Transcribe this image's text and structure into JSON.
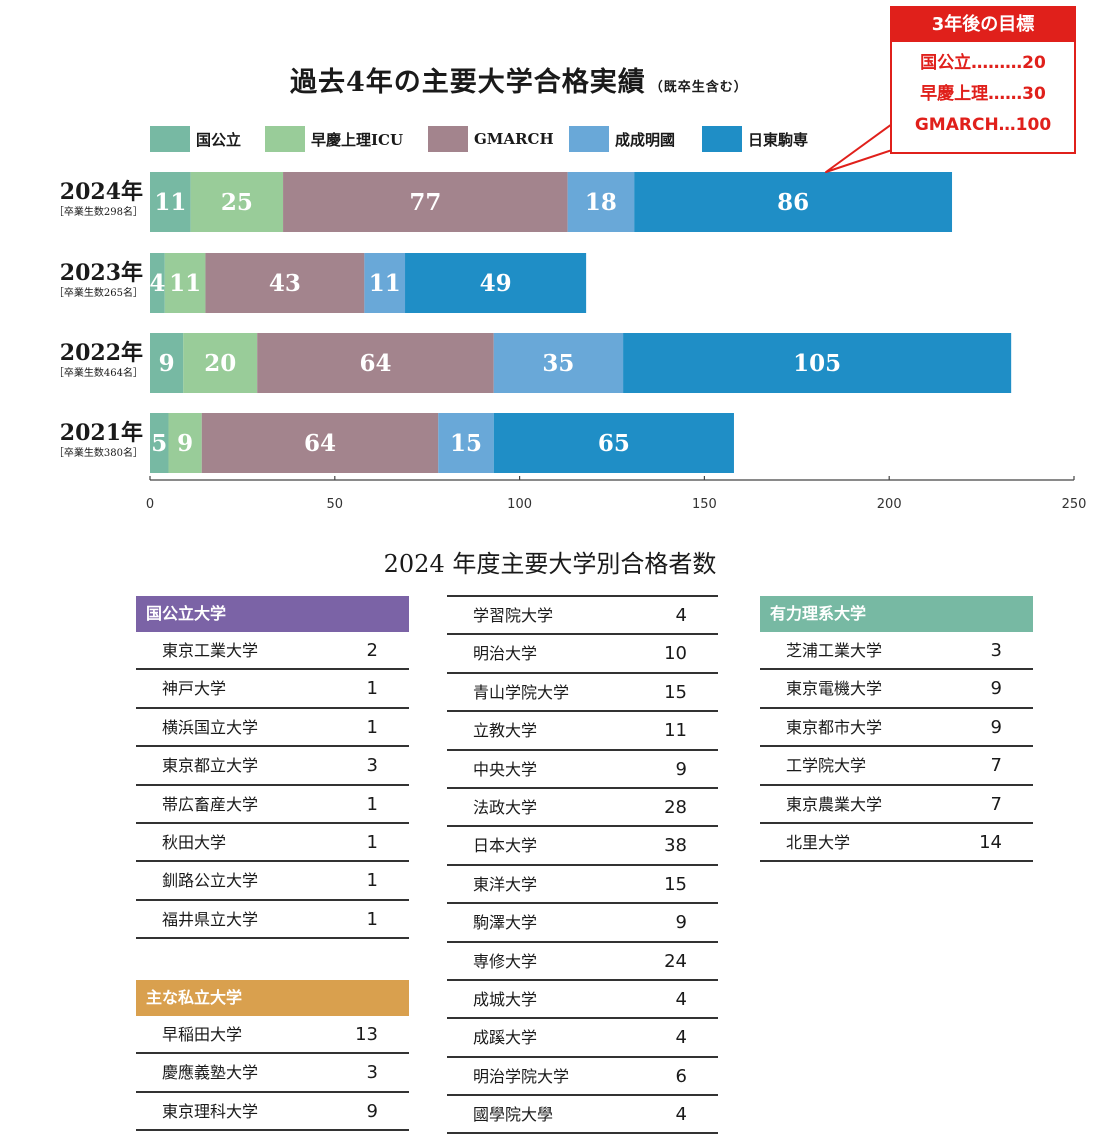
{
  "chart_data": {
    "type": "bar",
    "orientation": "horizontal",
    "stacked": true,
    "title": "過去4年の主要大学合格実績",
    "subtitle": "（既卒生含む）",
    "categories": [
      "2024年",
      "2023年",
      "2022年",
      "2021年"
    ],
    "category_notes": [
      "［卒業生数298名］",
      "［卒業生数265名］",
      "［卒業生数464名］",
      "［卒業生数380名］"
    ],
    "series": [
      {
        "name": "国公立",
        "color": "#77b9a3",
        "values": [
          11,
          4,
          9,
          5
        ]
      },
      {
        "name": "早慶上理ICU",
        "color": "#99cc99",
        "values": [
          25,
          11,
          20,
          9
        ]
      },
      {
        "name": "GMARCH",
        "color": "#a3848d",
        "values": [
          77,
          43,
          64,
          64
        ]
      },
      {
        "name": "成成明國",
        "color": "#69a8d8",
        "values": [
          18,
          11,
          35,
          15
        ]
      },
      {
        "name": "日東駒専",
        "color": "#1f8ec6",
        "values": [
          86,
          49,
          105,
          65
        ]
      }
    ],
    "xlim": [
      0,
      250
    ],
    "xticks": [
      0,
      50,
      100,
      150,
      200,
      250
    ],
    "legend_position": "top",
    "annotation": {
      "title": "3年後の目標",
      "lines": [
        "国公立………20",
        "早慶上理……30",
        "GMARCH…100"
      ]
    }
  },
  "table": {
    "title": "2024 年度主要大学別合格者数",
    "national": {
      "header": "国公立大学",
      "color": "#7b63a6",
      "rows": [
        {
          "name": "東京工業大学",
          "value": "2"
        },
        {
          "name": "神戸大学",
          "value": "1"
        },
        {
          "name": "横浜国立大学",
          "value": "1"
        },
        {
          "name": "東京都立大学",
          "value": "3"
        },
        {
          "name": "帯広畜産大学",
          "value": "1"
        },
        {
          "name": "秋田大学",
          "value": "1"
        },
        {
          "name": "釧路公立大学",
          "value": "1"
        },
        {
          "name": "福井県立大学",
          "value": "1"
        }
      ]
    },
    "private": {
      "header": "主な私立大学",
      "color": "#d9a04e",
      "rows": [
        {
          "name": "早稲田大学",
          "value": "13"
        },
        {
          "name": "慶應義塾大学",
          "value": "3"
        },
        {
          "name": "東京理科大学",
          "value": "9"
        }
      ]
    },
    "middle": {
      "rows": [
        {
          "name": "学習院大学",
          "value": "4"
        },
        {
          "name": "明治大学",
          "value": "10"
        },
        {
          "name": "青山学院大学",
          "value": "15"
        },
        {
          "name": "立教大学",
          "value": "11"
        },
        {
          "name": "中央大学",
          "value": "9"
        },
        {
          "name": "法政大学",
          "value": "28"
        },
        {
          "name": "日本大学",
          "value": "38"
        },
        {
          "name": "東洋大学",
          "value": "15"
        },
        {
          "name": "駒澤大学",
          "value": "9"
        },
        {
          "name": "専修大学",
          "value": "24"
        },
        {
          "name": "成城大学",
          "value": "4"
        },
        {
          "name": "成蹊大学",
          "value": "4"
        },
        {
          "name": "明治学院大学",
          "value": "6"
        },
        {
          "name": "國學院大學",
          "value": "4"
        }
      ]
    },
    "science": {
      "header": "有力理系大学",
      "color": "#77b9a3",
      "rows": [
        {
          "name": "芝浦工業大学",
          "value": "3"
        },
        {
          "name": "東京電機大学",
          "value": "9"
        },
        {
          "name": "東京都市大学",
          "value": "9"
        },
        {
          "name": "工学院大学",
          "value": "7"
        },
        {
          "name": "東京農業大学",
          "value": "7"
        },
        {
          "name": "北里大学",
          "value": "14"
        }
      ]
    }
  }
}
